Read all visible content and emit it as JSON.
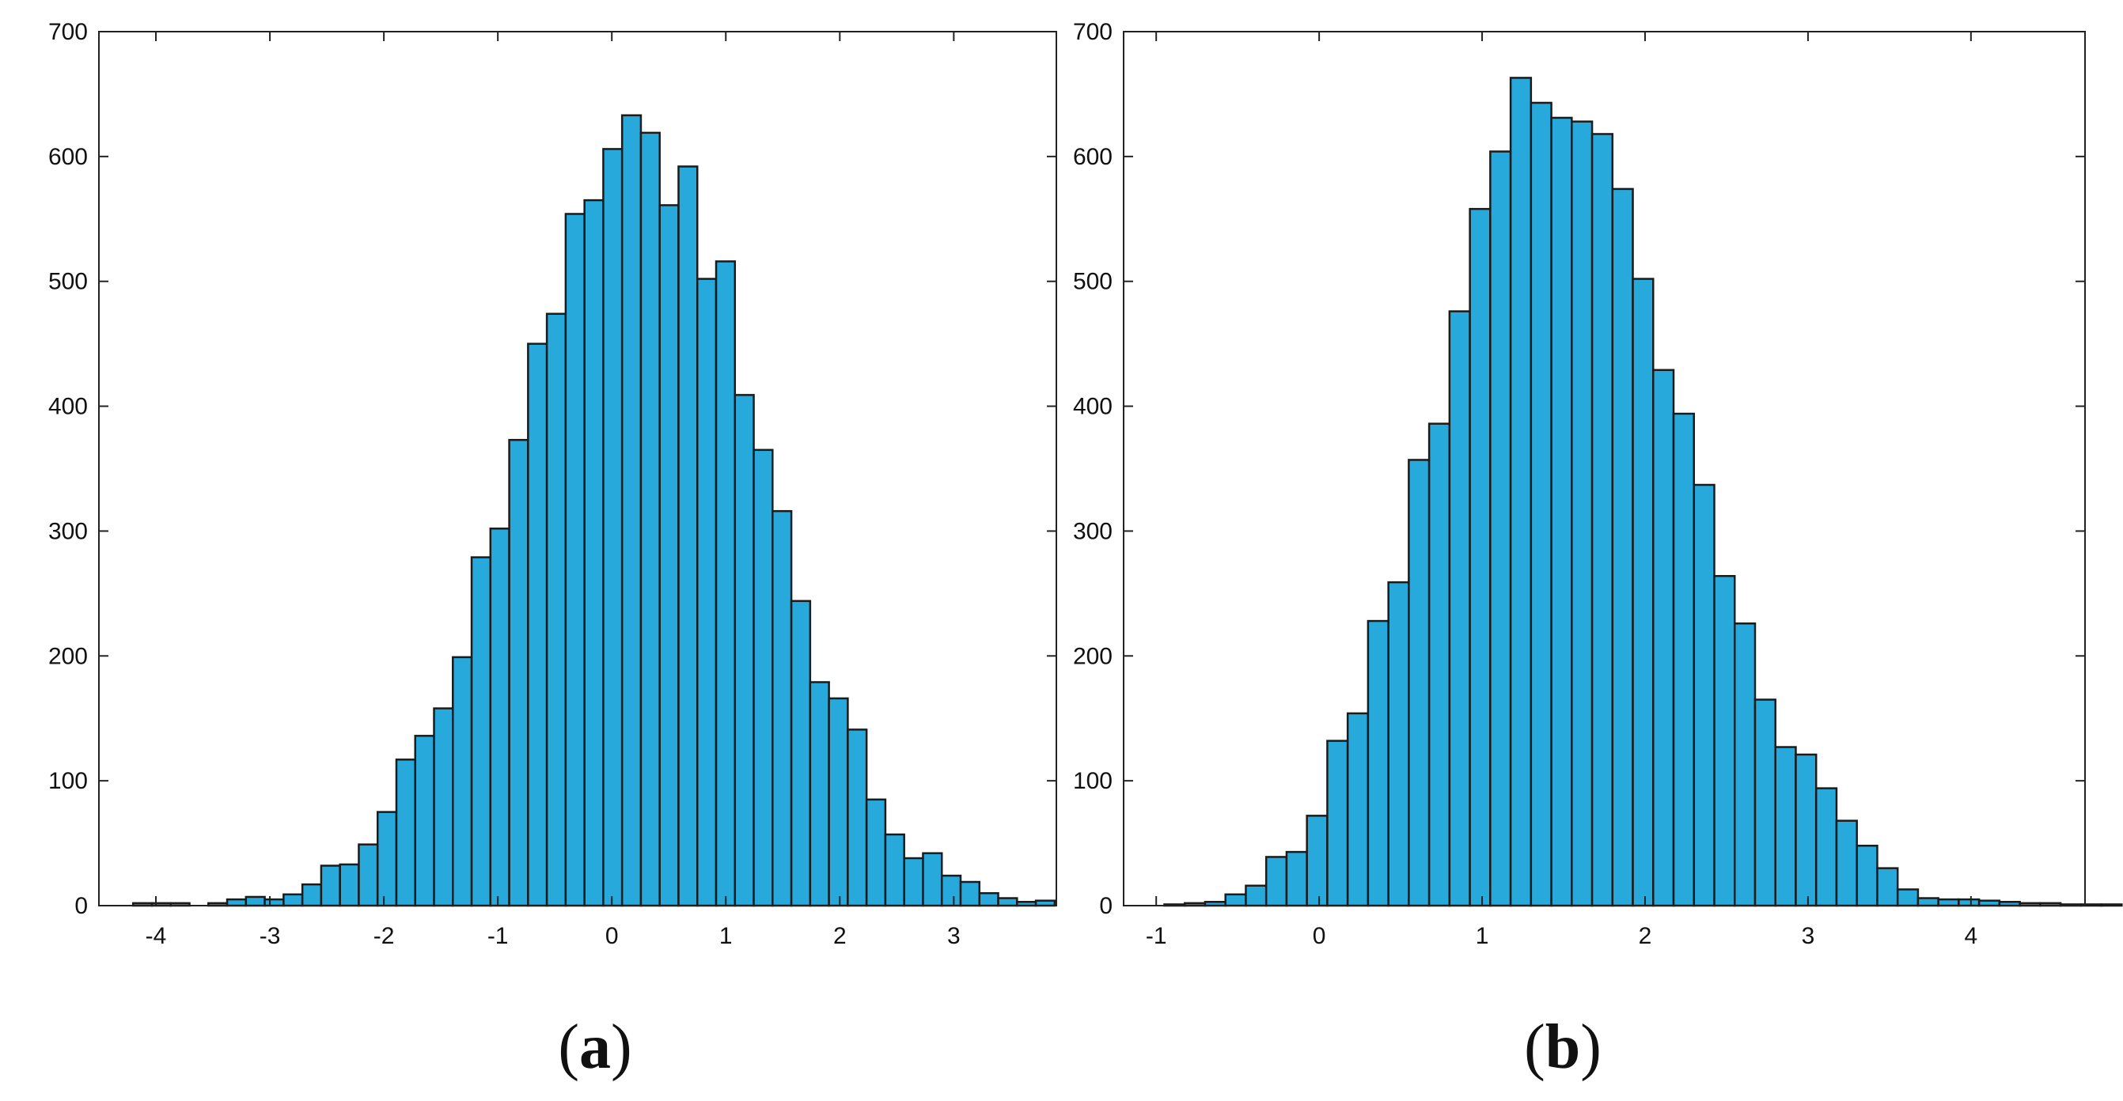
{
  "colors": {
    "bar_fill": "#27a9db",
    "bar_stroke": "#1b1b1b",
    "axis": "#222222",
    "text": "#111111"
  },
  "chart_data": [
    {
      "type": "bar",
      "caption_letter": "a",
      "xlim": [
        -4.5,
        3.9
      ],
      "ylim": [
        0,
        700
      ],
      "xticks": [
        "-4",
        "-3",
        "-2",
        "-1",
        "0",
        "1",
        "2",
        "3"
      ],
      "yticks": [
        "0",
        "100",
        "200",
        "300",
        "400",
        "500",
        "600",
        "700"
      ],
      "grid": false,
      "bin_edges_start": -4.2,
      "bin_width": 0.165,
      "values": [
        2,
        2,
        2,
        0,
        2,
        5,
        7,
        5,
        9,
        17,
        32,
        33,
        49,
        75,
        117,
        136,
        158,
        199,
        279,
        302,
        373,
        450,
        474,
        554,
        565,
        606,
        633,
        619,
        561,
        592,
        502,
        516,
        409,
        365,
        316,
        244,
        179,
        166,
        141,
        85,
        57,
        38,
        42,
        24,
        19,
        10,
        6,
        3,
        4
      ]
    },
    {
      "type": "bar",
      "caption_letter": "b",
      "xlim": [
        -1.2,
        4.7
      ],
      "ylim": [
        0,
        700
      ],
      "xticks": [
        "-1",
        "0",
        "1",
        "2",
        "3",
        "4"
      ],
      "yticks": [
        "0",
        "100",
        "200",
        "300",
        "400",
        "500",
        "600",
        "700"
      ],
      "grid": false,
      "bin_edges_start": -0.95,
      "bin_width": 0.125,
      "values": [
        1,
        2,
        3,
        9,
        16,
        39,
        43,
        72,
        132,
        154,
        228,
        259,
        357,
        386,
        476,
        558,
        604,
        663,
        643,
        631,
        628,
        618,
        574,
        502,
        429,
        394,
        337,
        264,
        226,
        165,
        127,
        121,
        94,
        68,
        48,
        30,
        13,
        6,
        5,
        5,
        4,
        3,
        2,
        2,
        1,
        1,
        1
      ]
    }
  ]
}
